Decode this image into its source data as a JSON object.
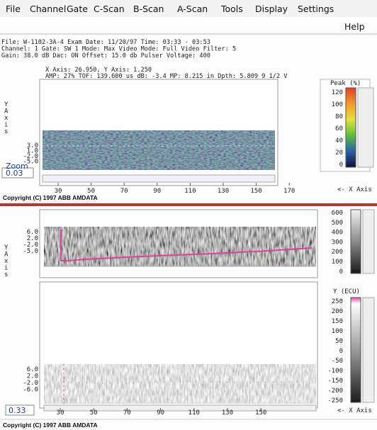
{
  "menu": {
    "items": [
      "File",
      "Channel",
      "Gate",
      "C-Scan",
      "B-Scan",
      "A-Scan",
      "Tools",
      "Display",
      "Settings"
    ],
    "help": "Help"
  },
  "info": {
    "lines": [
      "File: W-1102-3A-4    Exam Date: 11/20/97  Time: 03:33 - 03:53",
      "Channel: 1  Gate: SW 1  Mode: Max  Video Mode: Full  Video Filter: 5",
      "Gain: 38.0 dB  Dac: ON  Offset: 15.0 db  Pulser Voltage: 400"
    ]
  },
  "cursor": {
    "lines": [
      "X Axis:    26.950, Y Axis:    1.250",
      "AMP:  27%  TOF: 139.600 us  dB: -3.4  MP:  8.215 in  Dpth:   5.809 9 1/2 V"
    ]
  },
  "top_panel": {
    "y_axis_letters": [
      "Y",
      "A",
      "x",
      "i",
      "s"
    ],
    "y_ticks": [
      "3.0",
      "1.0",
      "-2.0",
      "-5.0"
    ],
    "x_ticks": [
      "30",
      "50",
      "70",
      "90",
      "110",
      "130",
      "150",
      "170"
    ],
    "zoom_label": "Zoom",
    "zoom_value": "0.03",
    "colorbar_title": "Peak  (%)",
    "colorbar_ticks": [
      "120",
      "100",
      "80",
      "60",
      "40",
      "20",
      "0"
    ],
    "x_axis_note": "<- X Axis",
    "copyright": "Copyright (C) 1997 ABB AMDATA"
  },
  "bottom_panel": {
    "upper": {
      "y_axis_letters": [
        "Y",
        "A",
        "x",
        "i",
        "s"
      ],
      "y_ticks": [
        "6.0",
        "2.0",
        "-2.0",
        "-5.0"
      ],
      "colorbar_ticks": [
        "600",
        "500",
        "400",
        "300",
        "200",
        "100",
        "0"
      ]
    },
    "lower": {
      "y_ticks": [
        "6.0",
        "2.0",
        "-2.0",
        "-6.0"
      ],
      "colorbar_title": "Y (ECU)",
      "colorbar_ticks": [
        "250",
        "200",
        "150",
        "100",
        "50",
        "0",
        "-50",
        "-100",
        "-150",
        "-200",
        "-250"
      ]
    },
    "x_ticks": [
      "30",
      "50",
      "70",
      "90",
      "110",
      "130",
      "150"
    ],
    "zoom_value": "0.33",
    "x_axis_note": "<- X Axis",
    "copyright": "Copyright (C) 1997 ABB AMDATA"
  }
}
